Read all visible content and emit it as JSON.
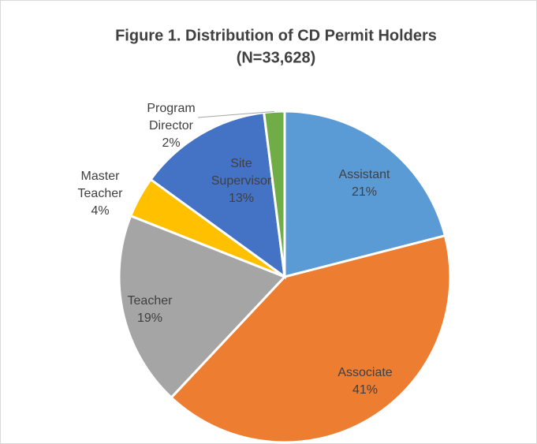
{
  "chart_data": {
    "type": "pie",
    "title": "Figure 1. Distribution of CD Permit Holders",
    "subtitle": "(N=33,628)",
    "categories": [
      "Assistant",
      "Associate",
      "Teacher",
      "Master Teacher",
      "Site Supervisor",
      "Program Director"
    ],
    "values": [
      21,
      41,
      19,
      4,
      13,
      2
    ],
    "value_labels": [
      "21%",
      "41%",
      "19%",
      "4%",
      "13%",
      "2%"
    ],
    "colors": [
      "#5b9bd5",
      "#ed7d31",
      "#a5a5a5",
      "#ffc000",
      "#4472c4",
      "#70ad47"
    ]
  }
}
